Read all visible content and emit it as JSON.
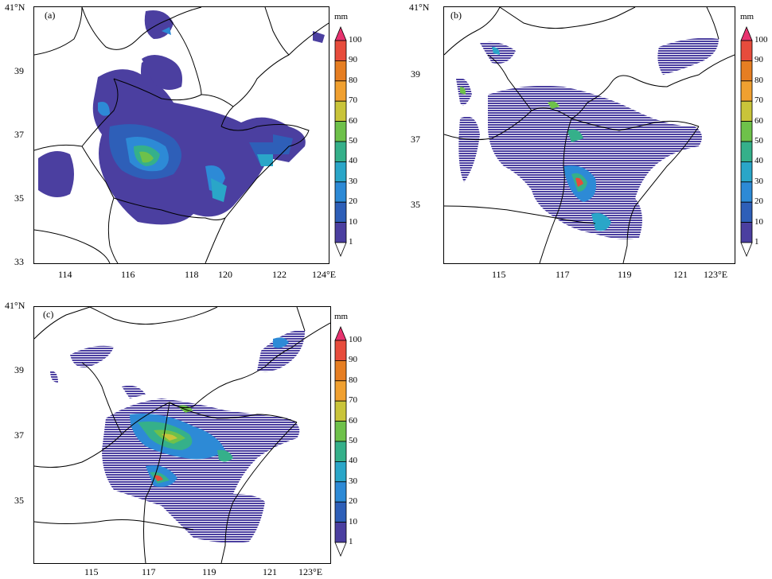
{
  "colorbar": {
    "unit": "mm",
    "levels": [
      "100",
      "90",
      "80",
      "70",
      "60",
      "50",
      "40",
      "30",
      "20",
      "10",
      "1"
    ],
    "colors": [
      "#e8336f",
      "#e74c3c",
      "#e67e22",
      "#f0a030",
      "#c9c43a",
      "#6ec14a",
      "#35b08a",
      "#2aa6c8",
      "#2d8ad6",
      "#2e5fb8",
      "#4b3fa0",
      "#ffffff"
    ]
  },
  "panels": [
    {
      "label": "(a)",
      "lat_ticks": [
        "41°N",
        "39",
        "37",
        "35",
        "33"
      ],
      "lon_ticks": [
        "114",
        "116",
        "118",
        "120",
        "122",
        "124°E"
      ]
    },
    {
      "label": "(b)",
      "lat_ticks": [
        "41°N",
        "39",
        "37",
        "35"
      ],
      "lon_ticks": [
        "115",
        "117",
        "119",
        "121",
        "123°E"
      ]
    },
    {
      "label": "(c)",
      "lat_ticks": [
        "41°N",
        "39",
        "37",
        "35"
      ],
      "lon_ticks": [
        "115",
        "117",
        "119",
        "121",
        "123°E"
      ]
    }
  ]
}
